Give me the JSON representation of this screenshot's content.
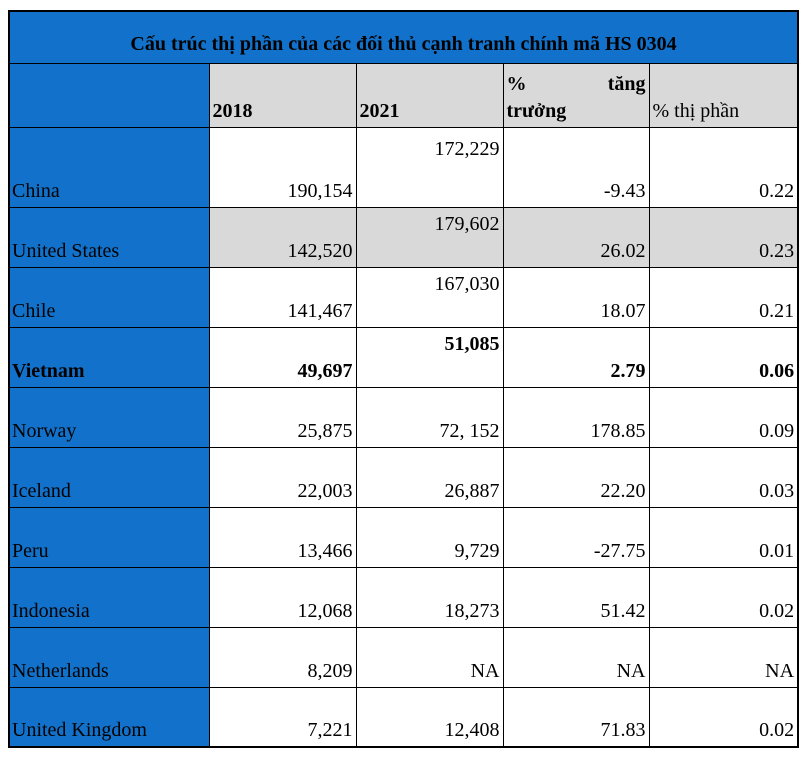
{
  "table": {
    "title": "Cấu trúc thị phần của các đối thủ cạnh tranh chính mã HS 0304",
    "header": {
      "country": "",
      "col_2018": "2018",
      "col_2021": "2021",
      "growth_line1_left": "%",
      "growth_line1_right": "tăng",
      "growth_line2": "trưởng",
      "share": "% thị phần"
    },
    "rows": [
      {
        "name": "China",
        "y2018": "190,154",
        "y2021": "172,229",
        "growth": "-9.43",
        "share": "0.22",
        "raised_2021": true,
        "tall": true
      },
      {
        "name": "United States",
        "y2018": "142,520",
        "y2021": "179,602",
        "growth": "26.02",
        "share": "0.23",
        "raised_2021": true,
        "shaded": true
      },
      {
        "name": "Chile",
        "y2018": "141,467",
        "y2021": "167,030",
        "growth": "18.07",
        "share": "0.21",
        "raised_2021": true
      },
      {
        "name": "Vietnam",
        "y2018": "49,697",
        "y2021": "51,085",
        "growth": "2.79",
        "share": "0.06",
        "raised_2021": true,
        "bold": true
      },
      {
        "name": "Norway",
        "y2018": "25,875",
        "y2021": "72, 152",
        "growth": "178.85",
        "share": "0.09"
      },
      {
        "name": "Iceland",
        "y2018": "22,003",
        "y2021": "26,887",
        "growth": "22.20",
        "share": "0.03"
      },
      {
        "name": "Peru",
        "y2018": "13,466",
        "y2021": "9,729",
        "growth": "-27.75",
        "share": "0.01"
      },
      {
        "name": "Indonesia",
        "y2018": "12,068",
        "y2021": "18,273",
        "growth": "51.42",
        "share": "0.02"
      },
      {
        "name": "Netherlands",
        "y2018": "8,209",
        "y2021": "NA",
        "growth": "NA",
        "share": "NA"
      },
      {
        "name": "United Kingdom",
        "y2018": "7,221",
        "y2021": "12,408",
        "growth": "71.83",
        "share": "0.02"
      }
    ]
  },
  "colors": {
    "header_blue": "#1272CB",
    "shade_gray": "#D9D9D9",
    "border": "#000000",
    "text": "#000000"
  }
}
